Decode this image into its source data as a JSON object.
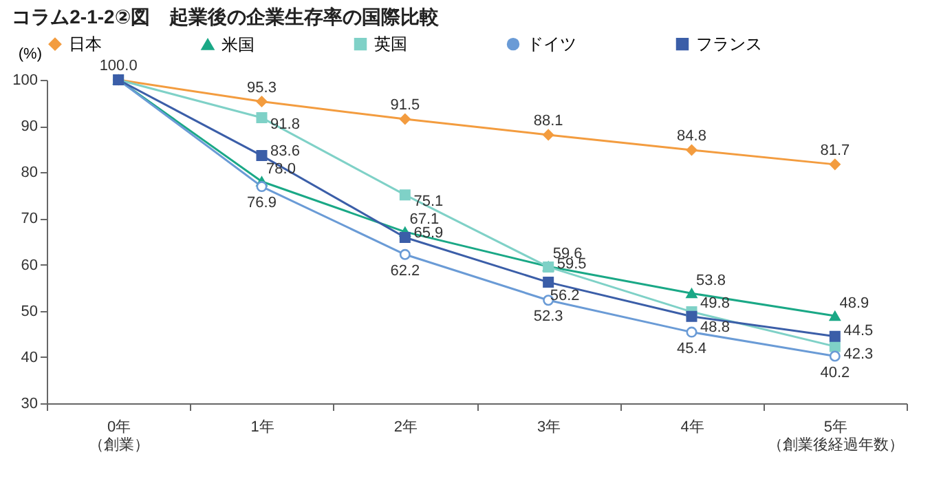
{
  "chart_data": {
    "type": "line",
    "title": "コラム2-1-2②図　起業後の企業生存率の国際比較",
    "ylabel": "(%)",
    "categories": [
      "0年（創業）",
      "1年",
      "2年",
      "3年",
      "4年",
      "5年（創業後経過年数）"
    ],
    "ylim": [
      30,
      100
    ],
    "yticks": [
      30,
      40,
      50,
      60,
      70,
      80,
      90,
      100
    ],
    "grid": false,
    "legend": "top",
    "series": [
      {
        "name": "日本",
        "color": "#f39c3f",
        "marker": "diamond",
        "values": [
          100,
          95.3,
          91.5,
          88.1,
          84.8,
          81.7
        ],
        "value_labels": [
          "100.0",
          "95.3",
          "91.5",
          "88.1",
          "84.8",
          "81.7"
        ]
      },
      {
        "name": "米国",
        "color": "#1aa886",
        "marker": "triangle",
        "values": [
          100,
          78.0,
          67.1,
          59.6,
          53.8,
          48.9
        ],
        "value_labels": [
          null,
          "78.0",
          "67.1",
          "59.6",
          "53.8",
          "48.9"
        ]
      },
      {
        "name": "英国",
        "color": "#7fd1c7",
        "marker": "square",
        "values": [
          100,
          91.8,
          75.1,
          59.5,
          49.8,
          42.3
        ],
        "value_labels": [
          null,
          "91.8",
          "75.1",
          "59.5",
          "49.8",
          "42.3"
        ]
      },
      {
        "name": "ドイツ",
        "color": "#6a9bd6",
        "marker": "circle",
        "values": [
          100,
          76.9,
          62.2,
          52.3,
          45.4,
          40.2
        ],
        "value_labels": [
          null,
          "76.9",
          "62.2",
          "52.3",
          "45.4",
          "40.2"
        ]
      },
      {
        "name": "フランス",
        "color": "#3b5ea8",
        "marker": "square",
        "values": [
          100,
          83.6,
          65.9,
          56.2,
          48.8,
          44.5
        ],
        "value_labels": [
          null,
          "83.6",
          "65.9",
          "56.2",
          "48.8",
          "44.5"
        ]
      }
    ]
  }
}
